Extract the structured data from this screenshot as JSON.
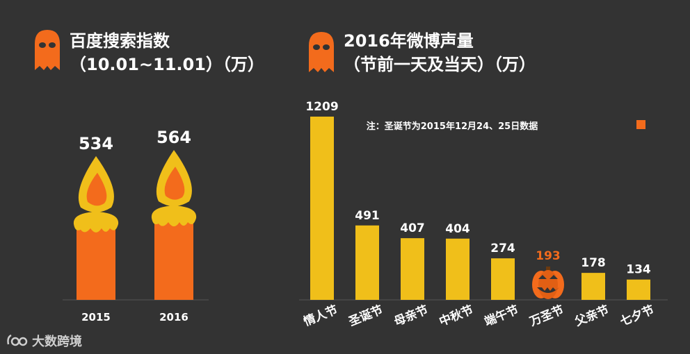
{
  "colors": {
    "background": "#333333",
    "orange": "#f36b1c",
    "yellow": "#f0bf1a",
    "flame_orange": "#f36b1c",
    "text": "#ffffff"
  },
  "left_panel": {
    "title_line1": "百度搜索指数",
    "title_line2": "（10.01~11.01）（万）",
    "icon": "ghost-icon"
  },
  "right_panel": {
    "title_line1": "2016年微博声量",
    "title_line2": "（节前一天及当天）（万）",
    "icon": "ghost-icon",
    "note": "注：圣诞节为2015年12月24、25日数据",
    "note_marker_icon": "square-marker-icon"
  },
  "watermark": {
    "text": "大数跨境",
    "icon": "logo-icon"
  },
  "chart_data": [
    {
      "type": "bar",
      "style": "candle",
      "categories": [
        "2015",
        "2016"
      ],
      "values": [
        534,
        564
      ],
      "data_labels": [
        "534",
        "564"
      ],
      "ylim": [
        0,
        600
      ],
      "grid": false
    },
    {
      "type": "bar",
      "categories": [
        "情人节",
        "圣诞节",
        "母亲节",
        "中秋节",
        "端午节",
        "万圣节",
        "父亲节",
        "七夕节"
      ],
      "values": [
        1209,
        491,
        407,
        404,
        274,
        193,
        178,
        134
      ],
      "data_labels": [
        "1209",
        "491",
        "407",
        "404",
        "274",
        "193",
        "178",
        "134"
      ],
      "highlight": {
        "category": "万圣节",
        "icon": "pumpkin-icon",
        "label_color": "#f36b1c"
      },
      "ylim": [
        0,
        1209
      ],
      "grid": false
    }
  ]
}
